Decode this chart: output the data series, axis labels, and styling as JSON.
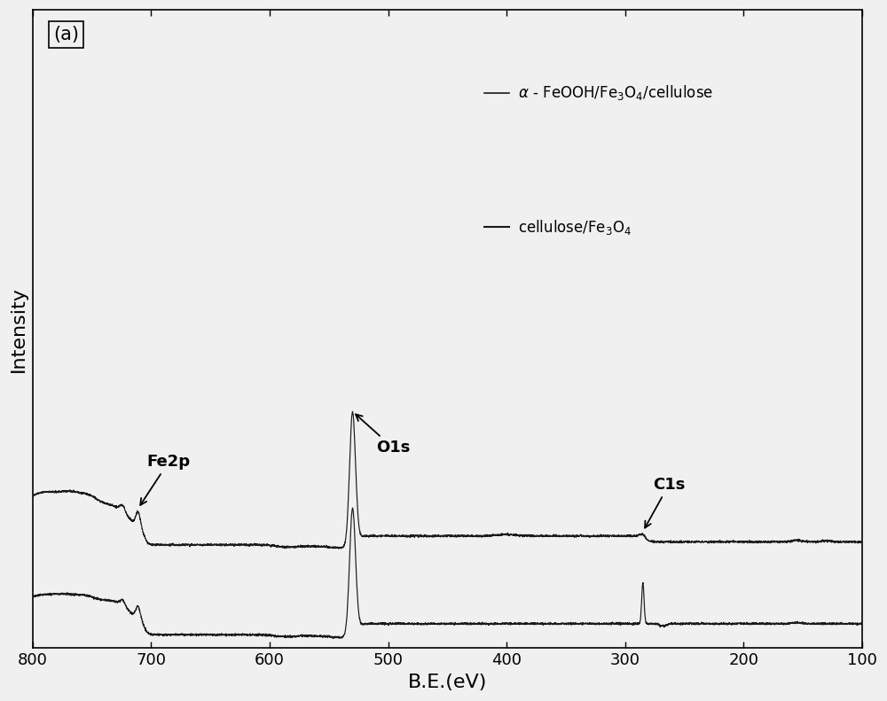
{
  "xlabel": "B.E.(eV)",
  "ylabel": "Intensity",
  "panel_label": "(a)",
  "xlim": [
    800,
    100
  ],
  "line_color": "#1a1a1a",
  "background_color": "#f0f0f0",
  "xticks": [
    800,
    700,
    600,
    500,
    400,
    300,
    200,
    100
  ],
  "label_fontsize": 16,
  "annot_fontsize": 13,
  "tick_fontsize": 13,
  "legend1_line": "—",
  "legend1_text": " α - FeOOH/Fe₃O₄/cellulose",
  "legend2_text": " cellulose/Fe₃O₄",
  "annot_fe2p": "Fe2p",
  "annot_o1s": "O1s",
  "annot_c1s": "C1s"
}
